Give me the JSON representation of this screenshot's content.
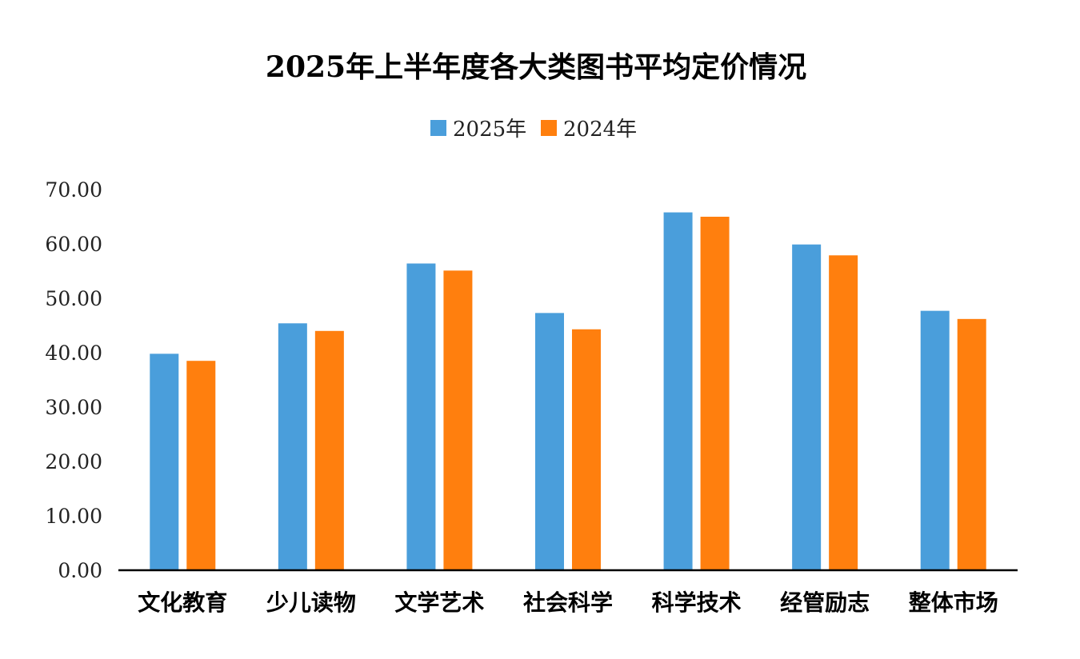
{
  "chart_data": {
    "type": "bar",
    "title": "2025年上半年度各大类图书平均定价情况",
    "categories": [
      "文化教育",
      "少儿读物",
      "文学艺术",
      "社会科学",
      "科学技术",
      "经管励志",
      "整体市场"
    ],
    "series": [
      {
        "name": "2025年",
        "color": "#4A9EDB",
        "values": [
          39.8,
          45.4,
          56.4,
          47.3,
          65.8,
          59.9,
          47.7
        ]
      },
      {
        "name": "2024年",
        "color": "#FF7F0E",
        "values": [
          38.5,
          44.0,
          55.1,
          44.3,
          65.0,
          57.9,
          46.2
        ]
      }
    ],
    "yticks": [
      "0.00",
      "10.00",
      "20.00",
      "30.00",
      "40.00",
      "50.00",
      "60.00",
      "70.00"
    ],
    "ylim": [
      0,
      70
    ],
    "legend_position": "top-center",
    "grid": false
  }
}
